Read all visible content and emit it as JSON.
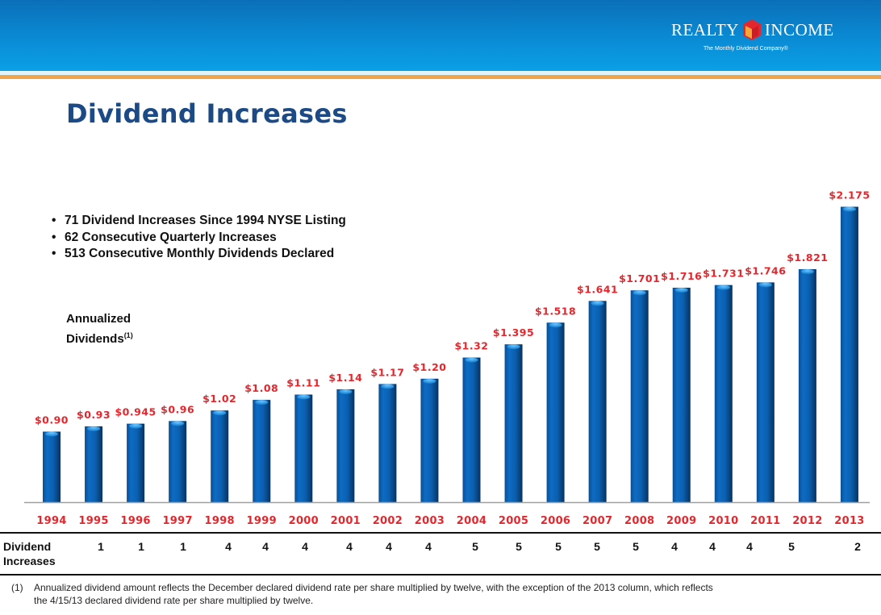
{
  "header": {
    "logo_left": "REALTY",
    "logo_right": "INCOME",
    "tagline": "The Monthly Dividend Company®",
    "colors": {
      "band": "#0a86d0",
      "stripe": "#f2a44a"
    }
  },
  "title": "Dividend Increases",
  "bullets": [
    "71 Dividend Increases Since 1994 NYSE Listing",
    "62 Consecutive Quarterly Increases",
    "513 Consecutive Monthly Dividends Declared"
  ],
  "axis_label": {
    "line1": "Annualized",
    "line2": "Dividends",
    "sup": "(1)"
  },
  "table": {
    "row_header_line1": "Dividend",
    "row_header_line2": "Increases"
  },
  "footnote": {
    "marker": "(1)",
    "line1": "Annualized dividend amount reflects the December declared dividend rate per share multiplied by twelve, with the exception of the 2013 column, which reflects",
    "line2": "the 4/15/13 declared dividend rate per share multiplied by twelve."
  },
  "chart_data": {
    "type": "bar",
    "title": "Dividend Increases",
    "ylabel": "Annualized Dividends (1)",
    "xlabel": "",
    "ylim": [
      0.5,
      2.25
    ],
    "grid": false,
    "categories": [
      "1994",
      "1995",
      "1996",
      "1997",
      "1998",
      "1999",
      "2000",
      "2001",
      "2002",
      "2003",
      "2004",
      "2005",
      "2006",
      "2007",
      "2008",
      "2009",
      "2010",
      "2011",
      "2012",
      "2013"
    ],
    "values": [
      0.9,
      0.93,
      0.945,
      0.96,
      1.02,
      1.08,
      1.11,
      1.14,
      1.17,
      1.2,
      1.32,
      1.395,
      1.518,
      1.641,
      1.701,
      1.716,
      1.731,
      1.746,
      1.821,
      2.175
    ],
    "value_labels": [
      "$0.90",
      "$0.93",
      "$0.945",
      "$0.96",
      "$1.02",
      "$1.08",
      "$1.11",
      "$1.14",
      "$1.17",
      "$1.20",
      "$1.32",
      "$1.395",
      "$1.518",
      "$1.641",
      "$1.701",
      "$1.716",
      "$1.731",
      "$1.746",
      "$1.821",
      "$2.175"
    ],
    "dividend_increases": [
      1,
      1,
      1,
      4,
      4,
      4,
      4,
      4,
      4,
      5,
      5,
      5,
      5,
      5,
      4,
      4,
      4,
      5,
      2
    ],
    "dividend_increases_start_year": "1995",
    "colors": {
      "bar": "#0b63b5",
      "label": "#e8252b"
    }
  }
}
